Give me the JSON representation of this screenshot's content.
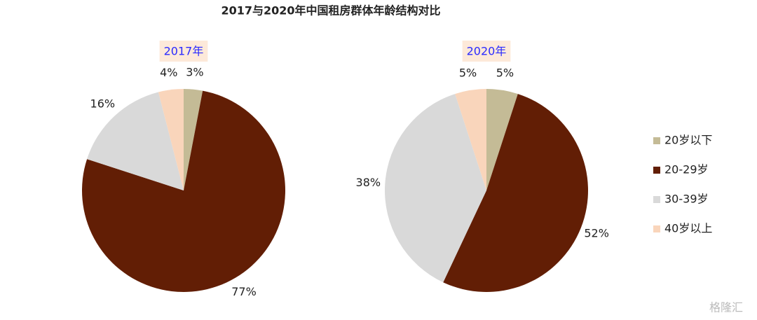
{
  "title": "2017与2020年中国租房群体年龄结构对比",
  "categories": [
    "20岁以下",
    "20-29岁",
    "30-39岁",
    "40岁以上"
  ],
  "colors": [
    "#c4bb96",
    "#621e05",
    "#d9d9d9",
    "#f9d5bb"
  ],
  "chart_data": [
    {
      "type": "pie",
      "title": "2017年",
      "values": [
        3,
        77,
        16,
        4
      ],
      "value_labels": [
        "3%",
        "77%",
        "16%",
        "4%"
      ]
    },
    {
      "type": "pie",
      "title": "2020年",
      "values": [
        5,
        52,
        38,
        5
      ],
      "value_labels": [
        "5%",
        "52%",
        "38%",
        "5%"
      ]
    }
  ],
  "watermark": "格隆汇"
}
